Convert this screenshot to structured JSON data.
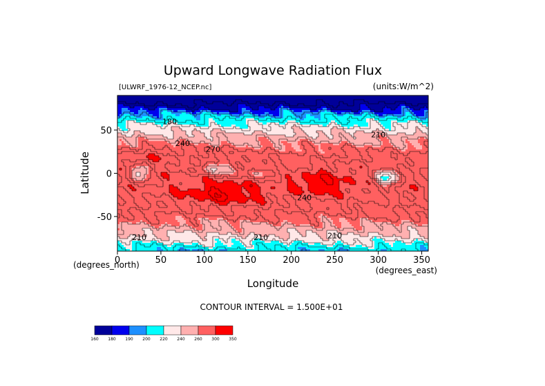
{
  "chart_data": {
    "type": "heatmap",
    "title": "Upward Longwave Radiation Flux",
    "subtitle_left": "[ULWRF_1976-12_NCEP.nc]",
    "subtitle_right": "(units:W/m^2)",
    "xlabel": "Longitude",
    "ylabel": "Latitude",
    "x_unit_label": "(degrees_east)",
    "y_unit_label": "(degrees_north)",
    "xlim": [
      0,
      357.5
    ],
    "ylim": [
      -90,
      90
    ],
    "x_ticks": [
      0,
      50,
      100,
      150,
      200,
      250,
      300,
      350
    ],
    "y_ticks": [
      50,
      0,
      -50
    ],
    "contour_interval_text": "CONTOUR INTERVAL = 1.500E+01",
    "colorbar": {
      "levels": [
        160,
        180,
        190,
        200,
        220,
        240,
        260,
        300,
        350
      ],
      "tick_labels": [
        "160",
        "180",
        "190",
        "200",
        "220",
        "240",
        "260",
        "300",
        "350"
      ],
      "colors": [
        "#000099",
        "#0000ee",
        "#1e90ff",
        "#00ffff",
        "#ffe8e8",
        "#ffb0b0",
        "#ff6060",
        "#ff0000"
      ]
    },
    "contour_labels": [
      {
        "text": "180",
        "lon": 60,
        "lat": 60
      },
      {
        "text": "210",
        "lon": 300,
        "lat": 45
      },
      {
        "text": "240",
        "lon": 75,
        "lat": 35
      },
      {
        "text": "270",
        "lon": 110,
        "lat": 28
      },
      {
        "text": "240",
        "lon": 215,
        "lat": -28
      },
      {
        "text": "210",
        "lon": 25,
        "lat": -74
      },
      {
        "text": "210",
        "lon": 165,
        "lat": -74
      },
      {
        "text": "210",
        "lon": 250,
        "lat": -72
      }
    ],
    "grid": false,
    "colorbar_placement": "bottom-left"
  }
}
